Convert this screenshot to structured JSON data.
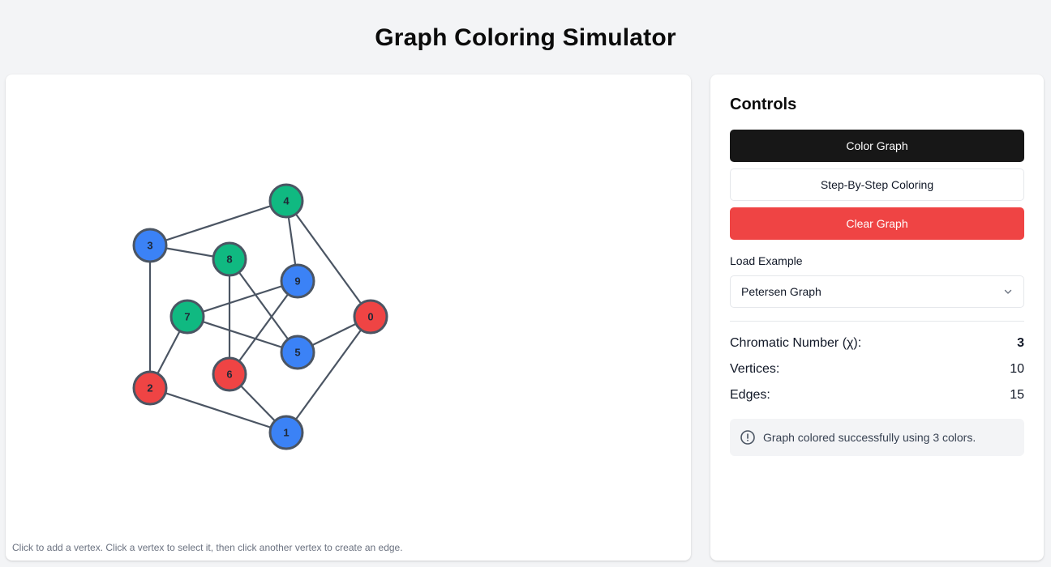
{
  "page": {
    "title": "Graph Coloring Simulator"
  },
  "canvas": {
    "hint": "Click to add a vertex. Click a vertex to select it, then click another vertex to create an edge.",
    "vertex_colors": {
      "red": "#ef4444",
      "green": "#10b981",
      "blue": "#3b82f6"
    },
    "vertices": [
      {
        "id": "0",
        "color": "red"
      },
      {
        "id": "1",
        "color": "blue"
      },
      {
        "id": "2",
        "color": "red"
      },
      {
        "id": "3",
        "color": "blue"
      },
      {
        "id": "4",
        "color": "green"
      },
      {
        "id": "5",
        "color": "blue"
      },
      {
        "id": "6",
        "color": "red"
      },
      {
        "id": "7",
        "color": "green"
      },
      {
        "id": "8",
        "color": "green"
      },
      {
        "id": "9",
        "color": "blue"
      }
    ],
    "edges": [
      [
        "0",
        "1"
      ],
      [
        "1",
        "2"
      ],
      [
        "2",
        "3"
      ],
      [
        "3",
        "4"
      ],
      [
        "4",
        "0"
      ],
      [
        "0",
        "5"
      ],
      [
        "1",
        "6"
      ],
      [
        "2",
        "7"
      ],
      [
        "3",
        "8"
      ],
      [
        "4",
        "9"
      ],
      [
        "5",
        "7"
      ],
      [
        "7",
        "9"
      ],
      [
        "9",
        "6"
      ],
      [
        "6",
        "8"
      ],
      [
        "8",
        "5"
      ]
    ]
  },
  "controls": {
    "heading": "Controls",
    "color_graph_label": "Color Graph",
    "step_by_step_label": "Step-By-Step Coloring",
    "clear_graph_label": "Clear Graph",
    "load_example_label": "Load Example",
    "load_example_value": "Petersen Graph",
    "stats": {
      "chromatic_label": "Chromatic Number (χ):",
      "chromatic_value": "3",
      "vertices_label": "Vertices:",
      "vertices_value": "10",
      "edges_label": "Edges:",
      "edges_value": "15"
    },
    "status_message": "Graph colored successfully using 3 colors.",
    "icons": {
      "select": "chevron-down-icon",
      "status": "info-circle-icon"
    }
  }
}
